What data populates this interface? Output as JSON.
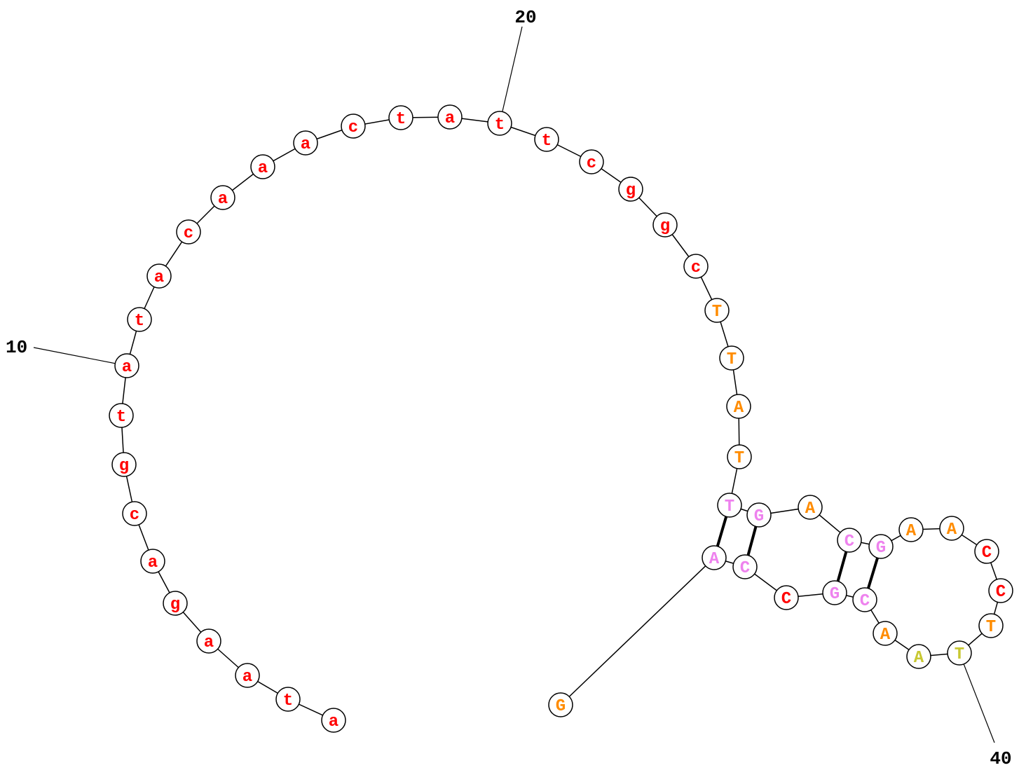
{
  "diagram": {
    "type": "rna-secondary-structure",
    "colors": {
      "red": "#ff0000",
      "orange": "#ff8c00",
      "pink": "#ee82ee",
      "yellow": "#c8c832",
      "outline": "#000000",
      "fill": "#ffffff"
    },
    "nucleotides": [
      {
        "base": "a",
        "color": "red"
      },
      {
        "base": "t",
        "color": "red"
      },
      {
        "base": "a",
        "color": "red"
      },
      {
        "base": "a",
        "color": "red"
      },
      {
        "base": "g",
        "color": "red"
      },
      {
        "base": "a",
        "color": "red"
      },
      {
        "base": "c",
        "color": "red"
      },
      {
        "base": "g",
        "color": "red"
      },
      {
        "base": "t",
        "color": "red"
      },
      {
        "base": "a",
        "color": "red"
      },
      {
        "base": "t",
        "color": "red"
      },
      {
        "base": "a",
        "color": "red"
      },
      {
        "base": "c",
        "color": "red"
      },
      {
        "base": "a",
        "color": "red"
      },
      {
        "base": "a",
        "color": "red"
      },
      {
        "base": "a",
        "color": "red"
      },
      {
        "base": "c",
        "color": "red"
      },
      {
        "base": "t",
        "color": "red"
      },
      {
        "base": "a",
        "color": "red"
      },
      {
        "base": "t",
        "color": "red"
      },
      {
        "base": "t",
        "color": "red"
      },
      {
        "base": "c",
        "color": "red"
      },
      {
        "base": "g",
        "color": "red"
      },
      {
        "base": "g",
        "color": "red"
      },
      {
        "base": "c",
        "color": "red"
      },
      {
        "base": "T",
        "color": "orange"
      },
      {
        "base": "T",
        "color": "orange"
      },
      {
        "base": "A",
        "color": "orange"
      },
      {
        "base": "T",
        "color": "orange"
      },
      {
        "base": "T",
        "color": "pink"
      },
      {
        "base": "G",
        "color": "pink"
      },
      {
        "base": "A",
        "color": "orange"
      },
      {
        "base": "C",
        "color": "pink"
      },
      {
        "base": "G",
        "color": "pink"
      },
      {
        "base": "A",
        "color": "orange"
      },
      {
        "base": "A",
        "color": "orange"
      },
      {
        "base": "C",
        "color": "red"
      },
      {
        "base": "C",
        "color": "red"
      },
      {
        "base": "T",
        "color": "orange"
      },
      {
        "base": "T",
        "color": "yellow"
      },
      {
        "base": "A",
        "color": "yellow"
      },
      {
        "base": "A",
        "color": "orange"
      },
      {
        "base": "C",
        "color": "pink"
      },
      {
        "base": "G",
        "color": "pink"
      },
      {
        "base": "C",
        "color": "red"
      },
      {
        "base": "C",
        "color": "pink"
      },
      {
        "base": "A",
        "color": "pink"
      },
      {
        "base": "G",
        "color": "orange"
      }
    ],
    "pairs": [
      [
        30,
        47
      ],
      [
        31,
        46
      ],
      [
        33,
        44
      ],
      [
        34,
        43
      ]
    ],
    "position_labels": [
      {
        "index": 10,
        "text": "10"
      },
      {
        "index": 20,
        "text": "20"
      },
      {
        "index": 40,
        "text": "40"
      }
    ]
  }
}
